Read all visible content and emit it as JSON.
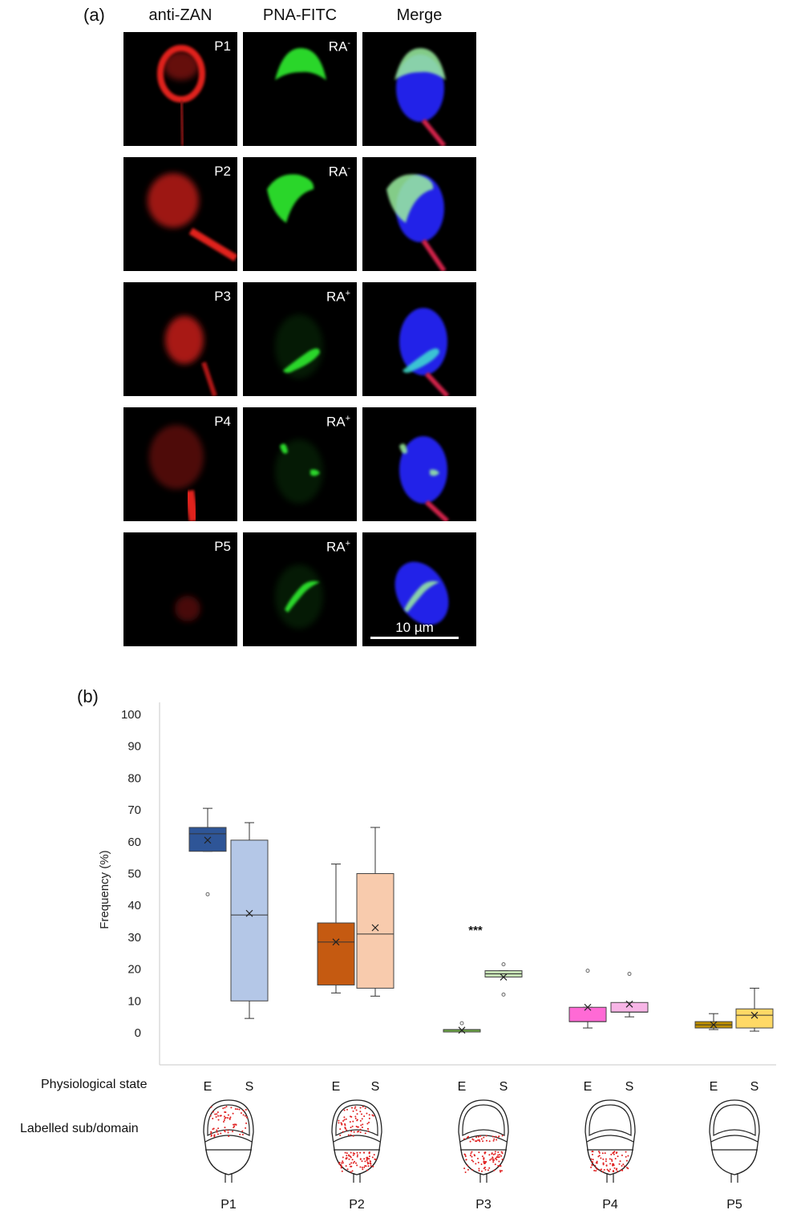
{
  "panel_a": {
    "letter": "(a)",
    "columns": [
      "anti-ZAN",
      "PNA-FITC",
      "Merge"
    ],
    "rows": [
      {
        "pattern": "P1",
        "ra": "RA",
        "ra_sign": "-"
      },
      {
        "pattern": "P2",
        "ra": "RA",
        "ra_sign": "-"
      },
      {
        "pattern": "P3",
        "ra": "RA",
        "ra_sign": "+"
      },
      {
        "pattern": "P4",
        "ra": "RA",
        "ra_sign": "+"
      },
      {
        "pattern": "P5",
        "ra": "RA",
        "ra_sign": "+"
      }
    ],
    "scale_bar": "10 µm"
  },
  "panel_b": {
    "letter": "(b)",
    "row_labels": {
      "state": "Physiological state",
      "domain": "Labelled sub/domain"
    },
    "pattern_labels": [
      "P1",
      "P2",
      "P3",
      "P4",
      "P5"
    ],
    "significance": "***"
  },
  "chart_data": {
    "type": "boxplot",
    "ylabel": "Frequency (%)",
    "ylim": [
      0,
      100
    ],
    "yticks": [
      0,
      10,
      20,
      30,
      40,
      50,
      60,
      70,
      80,
      90,
      100
    ],
    "categories": [
      "E",
      "S",
      "E",
      "S",
      "E",
      "S",
      "E",
      "S",
      "E",
      "S"
    ],
    "groups": [
      "P1",
      "P2",
      "P3",
      "P4",
      "P5"
    ],
    "boxes": [
      {
        "group": "P1",
        "state": "E",
        "min": 57,
        "q1": 57,
        "median": 62.5,
        "q3": 64.5,
        "max": 70.5,
        "mean": 60.5,
        "outliers": [
          43.5
        ],
        "color": "#2e5597"
      },
      {
        "group": "P1",
        "state": "S",
        "min": 4.5,
        "q1": 10,
        "median": 37,
        "q3": 60.5,
        "max": 66,
        "mean": 37.5,
        "outliers": [],
        "color": "#b4c7e7"
      },
      {
        "group": "P2",
        "state": "E",
        "min": 12.5,
        "q1": 15,
        "median": 28.5,
        "q3": 34.5,
        "max": 53,
        "mean": 28.5,
        "outliers": [],
        "color": "#c55a11"
      },
      {
        "group": "P2",
        "state": "S",
        "min": 11.5,
        "q1": 14,
        "median": 31,
        "q3": 50,
        "max": 64.5,
        "mean": 33,
        "outliers": [],
        "color": "#f8cbad"
      },
      {
        "group": "P3",
        "state": "E",
        "min": 0.5,
        "q1": 0.5,
        "median": 1,
        "q3": 1,
        "max": 1,
        "mean": 0.8,
        "outliers": [
          3
        ],
        "color": "#70ad47"
      },
      {
        "group": "P3",
        "state": "S",
        "min": 17.5,
        "q1": 17.5,
        "median": 18.5,
        "q3": 19.5,
        "max": 19.5,
        "mean": 17.5,
        "outliers": [
          21.5,
          12
        ],
        "color": "#c5e0b4"
      },
      {
        "group": "P4",
        "state": "E",
        "min": 1.5,
        "q1": 3.5,
        "median": 3.5,
        "q3": 8,
        "max": 8,
        "mean": 8,
        "outliers": [
          19.5
        ],
        "color": "#ff6ad5"
      },
      {
        "group": "P4",
        "state": "S",
        "min": 5,
        "q1": 6.5,
        "median": 6.5,
        "q3": 9.5,
        "max": 9.5,
        "mean": 9,
        "outliers": [
          18.5
        ],
        "color": "#f7b5e6"
      },
      {
        "group": "P5",
        "state": "E",
        "min": 1,
        "q1": 1.5,
        "median": 2.5,
        "q3": 3.5,
        "max": 6,
        "mean": 2.5,
        "outliers": [],
        "color": "#bf9000"
      },
      {
        "group": "P5",
        "state": "S",
        "min": 0.5,
        "q1": 1.5,
        "median": 5.5,
        "q3": 7.5,
        "max": 14,
        "mean": 5.5,
        "outliers": [],
        "color": "#ffd966"
      }
    ]
  }
}
